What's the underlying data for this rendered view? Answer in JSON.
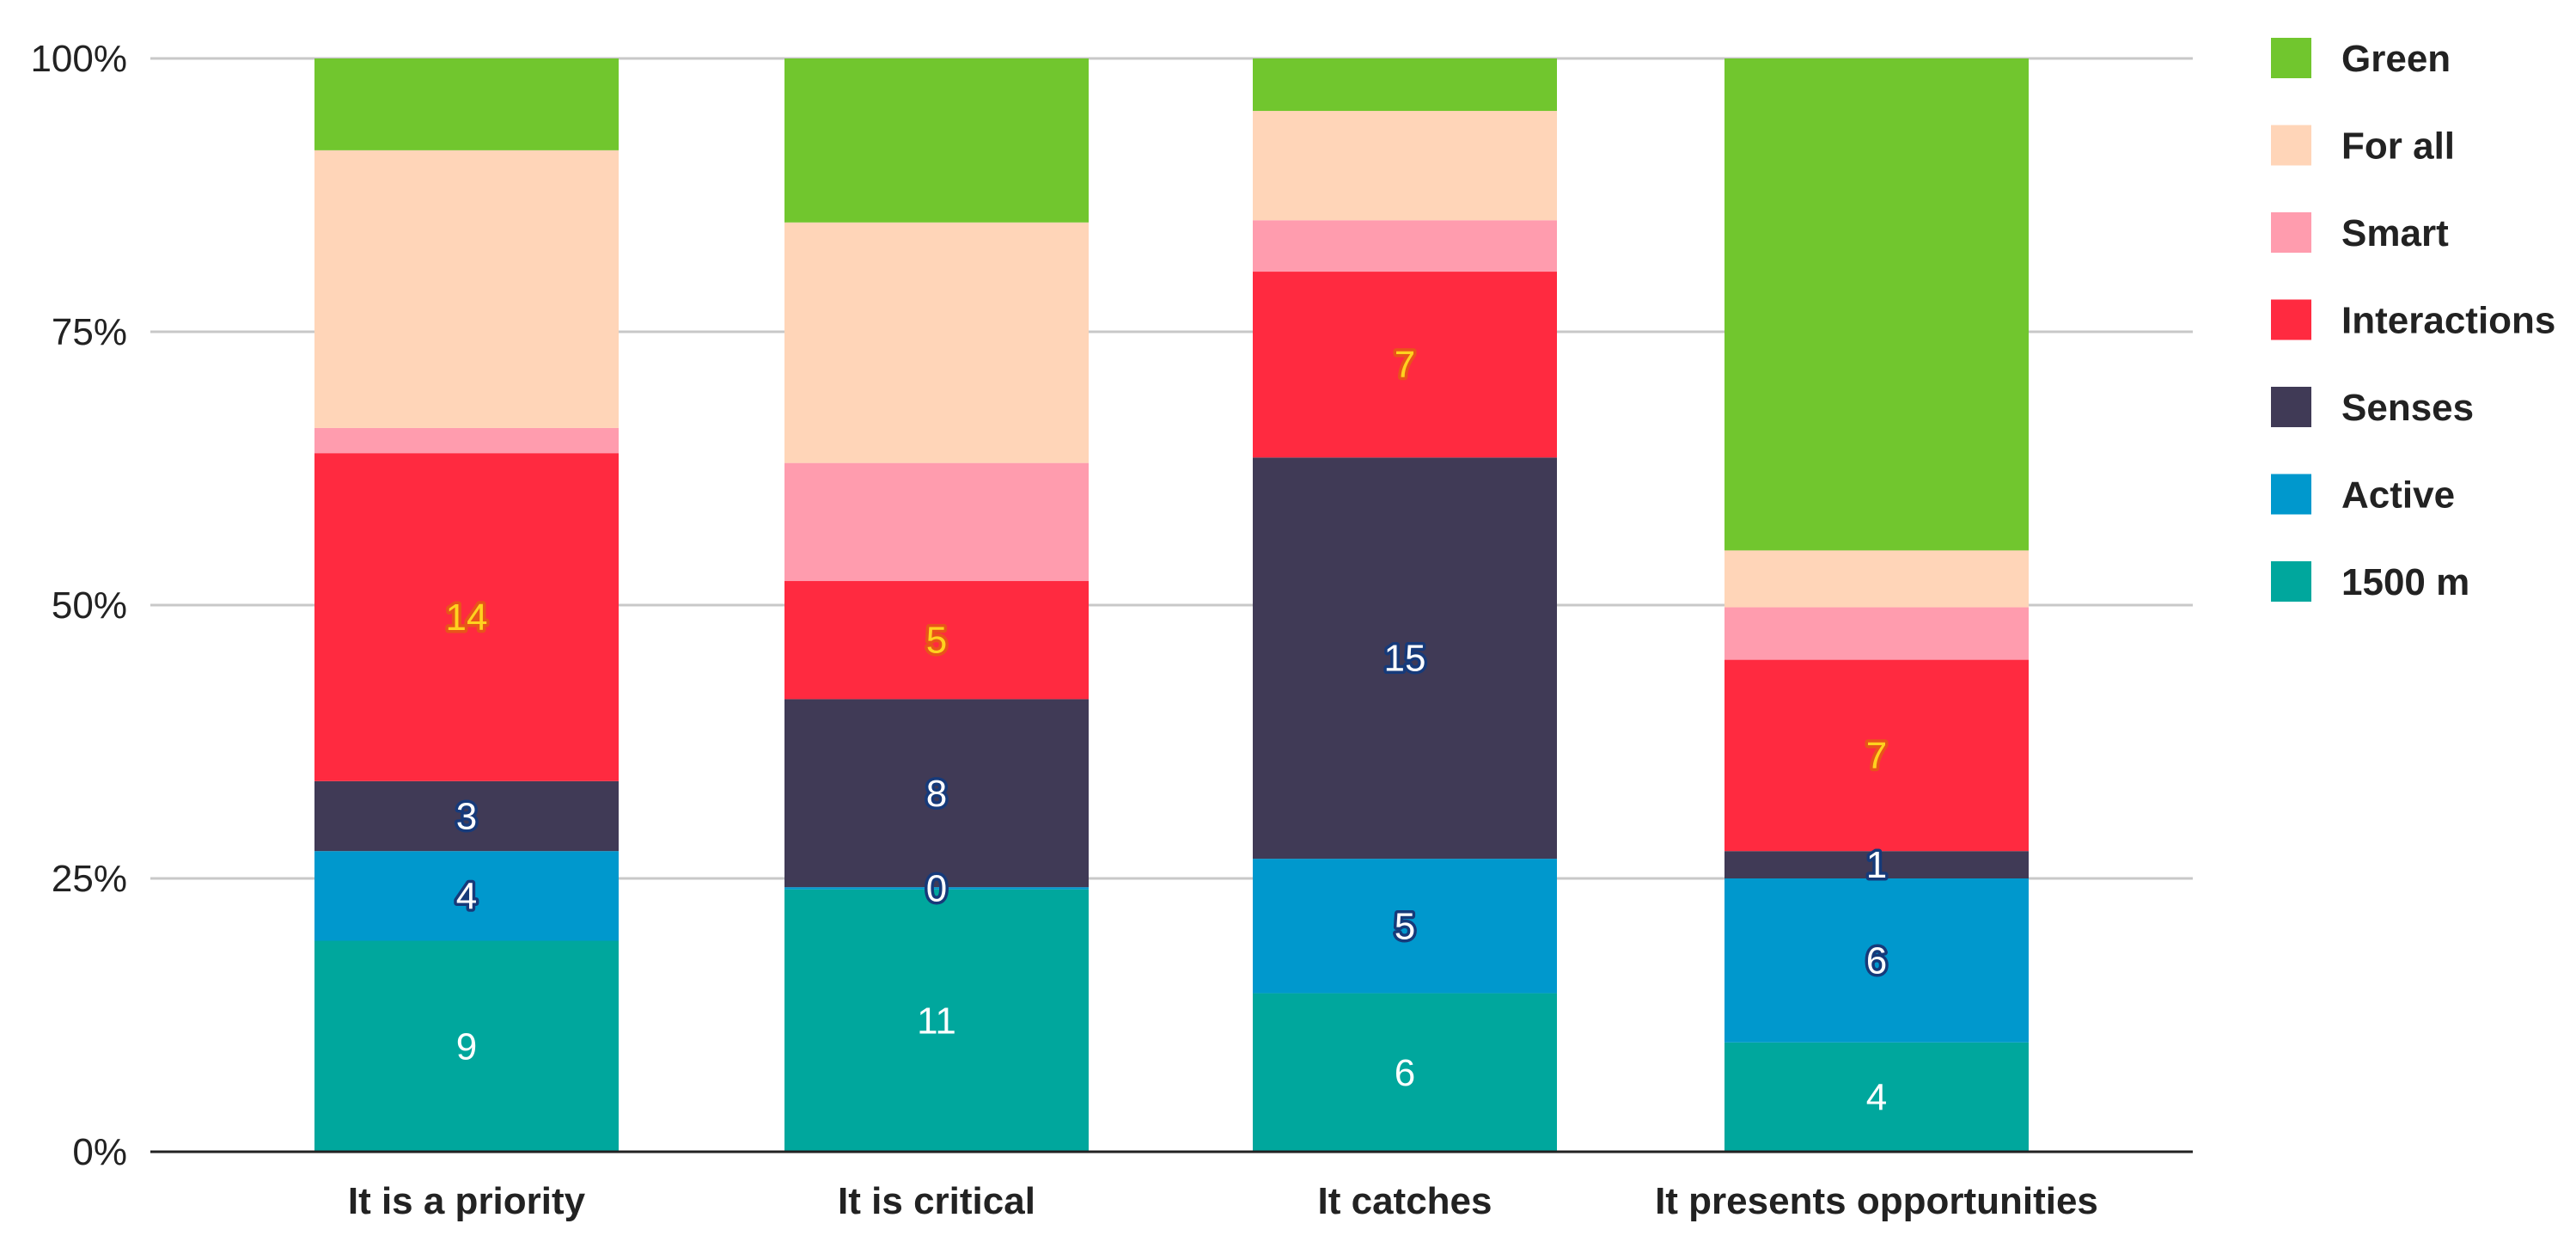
{
  "chart_data": {
    "type": "bar",
    "stacked": true,
    "normalized_percent": true,
    "title": "",
    "xlabel": "",
    "ylabel": "",
    "ylim": [
      0,
      100
    ],
    "yticks": [
      "0%",
      "25%",
      "50%",
      "75%",
      "100%"
    ],
    "grid": true,
    "legend_position": "right",
    "categories": [
      "It is a priority",
      "It is critical",
      "It catches",
      "It presents opportunities"
    ],
    "series": [
      {
        "name": "1500 m",
        "color": "#00a79d",
        "percent": [
          19.3,
          24.0,
          14.5,
          10.0
        ],
        "labels": [
          "9",
          "11",
          "6",
          "4"
        ],
        "label_style": "plain"
      },
      {
        "name": "Active",
        "color": "#0098cd",
        "percent": [
          8.2,
          0.2,
          12.3,
          15.0
        ],
        "labels": [
          "4",
          "0",
          "5",
          "6"
        ],
        "label_style": "halo-blue"
      },
      {
        "name": "Senses",
        "color": "#403a56",
        "percent": [
          6.4,
          17.2,
          36.7,
          2.5
        ],
        "labels": [
          "3",
          "8",
          "15",
          "1"
        ],
        "label_style": "halo-blue"
      },
      {
        "name": "Interactions",
        "color": "#ff2a40",
        "percent": [
          30.0,
          10.8,
          17.0,
          17.5
        ],
        "labels": [
          "14",
          "5",
          "7",
          "7"
        ],
        "label_style": "halo-orange"
      },
      {
        "name": "Smart",
        "color": "#ff9cae",
        "percent": [
          2.3,
          10.8,
          4.7,
          4.8
        ],
        "labels": null,
        "label_style": "none"
      },
      {
        "name": "For all",
        "color": "#ffd5b8",
        "percent": [
          25.4,
          22.0,
          10.0,
          5.2
        ],
        "labels": null,
        "label_style": "none"
      },
      {
        "name": "Green",
        "color": "#71c62e",
        "percent": [
          8.4,
          15.0,
          4.8,
          45.0
        ],
        "labels": null,
        "label_style": "none"
      }
    ],
    "legend_order": [
      "Green",
      "For all",
      "Smart",
      "Interactions",
      "Senses",
      "Active",
      "1500 m"
    ]
  },
  "colors": {
    "gridline": "#c8c8c8",
    "axis": "#222222",
    "text": "#222222",
    "label_plain": "#ffffff",
    "label_blue_fill": "#ffffff",
    "label_blue_halo": "#163a7a",
    "label_orange_fill": "#ffd21f",
    "label_orange_halo": "#e8541a"
  }
}
